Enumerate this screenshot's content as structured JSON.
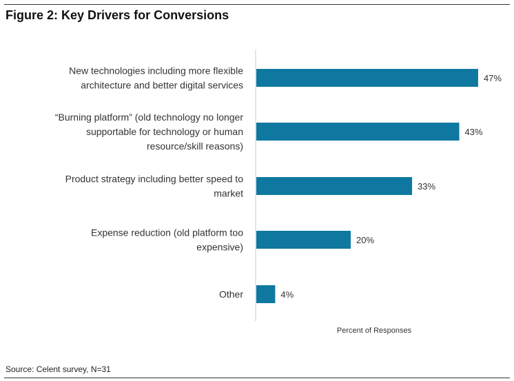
{
  "figure": {
    "title": "Figure 2: Key Drivers for Conversions",
    "source": "Source: Celent survey, N=31"
  },
  "colors": {
    "bar": "#0E78A0",
    "axis": "#C8C8C8"
  },
  "chart_data": {
    "type": "bar",
    "orientation": "horizontal",
    "title": "Figure 2: Key Drivers for Conversions",
    "xlabel": "Percent of Responses",
    "ylabel": "",
    "xlim": [
      0,
      100
    ],
    "grid": false,
    "legend": "none",
    "categories": [
      [
        "New technologies including more flexible",
        "architecture and better digital services"
      ],
      [
        "“Burning platform” (old technology no longer",
        "supportable for technology or human",
        "resource/skill reasons)"
      ],
      [
        "Product strategy including better speed to",
        "market"
      ],
      [
        "Expense reduction (old platform too",
        "expensive)"
      ],
      [
        "Other"
      ]
    ],
    "values": [
      47,
      43,
      33,
      20,
      4
    ],
    "value_labels": [
      "47%",
      "43%",
      "33%",
      "20%",
      "4%"
    ]
  }
}
